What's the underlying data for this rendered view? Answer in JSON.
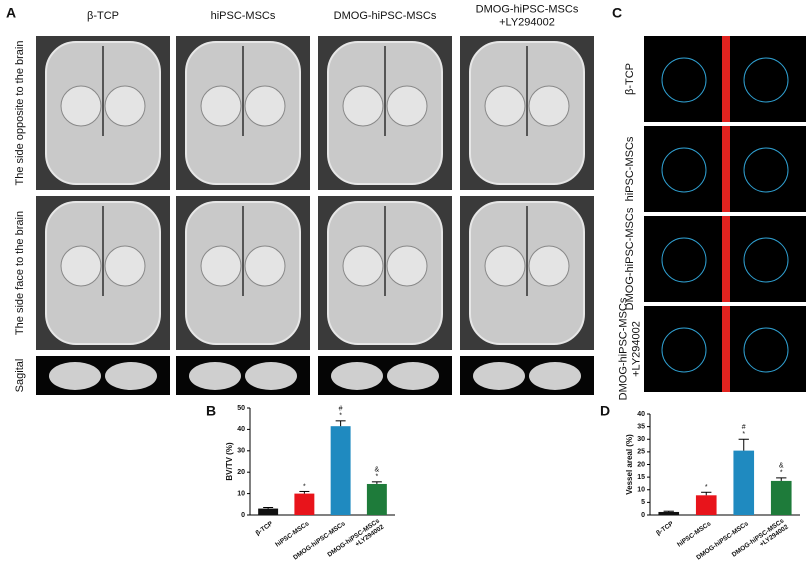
{
  "panel_labels": [
    "A",
    "B",
    "C",
    "D"
  ],
  "panel_a": {
    "columns": [
      "β-TCP",
      "hiPSC-MSCs",
      "DMOG-hiPSC-MSCs",
      "DMOG-hiPSC-MSCs\n+LY294002"
    ],
    "rows": [
      "The side opposite to the brain",
      "The side face to the brain",
      "Sagital"
    ]
  },
  "panel_c": {
    "rows": [
      "β-TCP",
      "hiPSC-MSCs",
      "DMOG-hiPSC-MSCs",
      "DMOG-hiPSC-MSCs\n+LY294002"
    ]
  },
  "chart_data": [
    {
      "type": "bar",
      "ylabel": "BV/TV (%)",
      "categories": [
        "β-TCP",
        "hiPSC-MSCs",
        "DMOG-hiPSC-MSCs",
        "DMOG-hiPSC-MSCs\n+LY294002"
      ],
      "values": [
        3,
        10,
        41.5,
        14.5
      ],
      "errors": [
        0.5,
        1,
        2.5,
        1
      ],
      "colors": [
        "#111111",
        "#e8141b",
        "#1f8ac0",
        "#1e7b3a"
      ],
      "annotations": [
        null,
        [
          "*"
        ],
        [
          "#",
          "*"
        ],
        [
          "&",
          "*"
        ]
      ],
      "ylim": [
        0,
        50
      ],
      "yticks": [
        0,
        10,
        20,
        30,
        40,
        50
      ]
    },
    {
      "type": "bar",
      "ylabel": "Vessel areal (%)",
      "categories": [
        "β-TCP",
        "hiPSC-MSCs",
        "DMOG-hiPSC-MSCs",
        "DMOG-hiPSC-MSCs\n+LY294002"
      ],
      "values": [
        1.2,
        7.8,
        25.5,
        13.5
      ],
      "errors": [
        0.3,
        1.2,
        4.5,
        1.2
      ],
      "colors": [
        "#111111",
        "#e8141b",
        "#1f8ac0",
        "#1e7b3a"
      ],
      "annotations": [
        null,
        [
          "*"
        ],
        [
          "#",
          "*"
        ],
        [
          "&",
          "*"
        ]
      ],
      "ylim": [
        0,
        40
      ],
      "yticks": [
        0,
        5,
        10,
        15,
        20,
        25,
        30,
        35,
        40
      ]
    }
  ]
}
